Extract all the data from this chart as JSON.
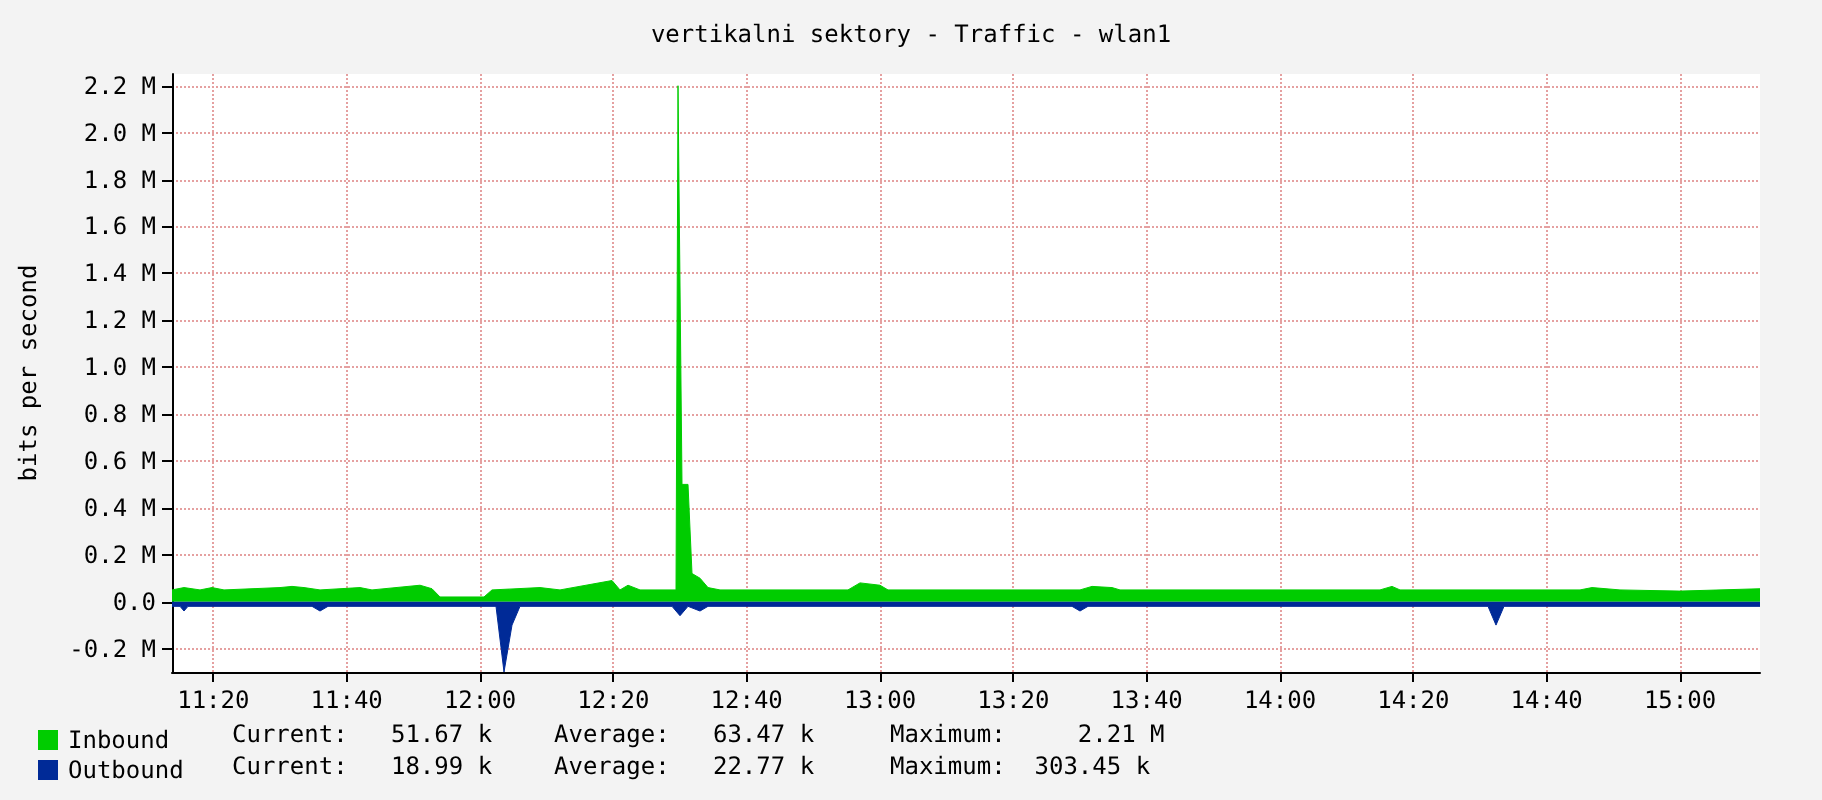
{
  "chart_data": {
    "type": "area",
    "title": "vertikalni sektory - Traffic - wlan1",
    "ylabel": "bits per second",
    "xlim": [
      11.23,
      15.2
    ],
    "xticks": [
      {
        "value": 11.3333,
        "label": "11:20"
      },
      {
        "value": 11.6667,
        "label": "11:40"
      },
      {
        "value": 12,
        "label": "12:00"
      },
      {
        "value": 12.3333,
        "label": "12:20"
      },
      {
        "value": 12.6667,
        "label": "12:40"
      },
      {
        "value": 13,
        "label": "13:00"
      },
      {
        "value": 13.3333,
        "label": "13:20"
      },
      {
        "value": 13.6667,
        "label": "13:40"
      },
      {
        "value": 14,
        "label": "14:00"
      },
      {
        "value": 14.3333,
        "label": "14:20"
      },
      {
        "value": 14.6667,
        "label": "14:40"
      },
      {
        "value": 15,
        "label": "15:00"
      }
    ],
    "ylim": [
      -0.3,
      2.25
    ],
    "yticks": [
      {
        "value": -0.2,
        "label": "-0.2 M"
      },
      {
        "value": 0,
        "label": "0.0"
      },
      {
        "value": 0.2,
        "label": "0.2 M"
      },
      {
        "value": 0.4,
        "label": "0.4 M"
      },
      {
        "value": 0.6,
        "label": "0.6 M"
      },
      {
        "value": 0.8,
        "label": "0.8 M"
      },
      {
        "value": 1.0,
        "label": "1.0 M"
      },
      {
        "value": 1.2,
        "label": "1.2 M"
      },
      {
        "value": 1.4,
        "label": "1.4 M"
      },
      {
        "value": 1.6,
        "label": "1.6 M"
      },
      {
        "value": 1.8,
        "label": "1.8 M"
      },
      {
        "value": 2.0,
        "label": "2.0 M"
      },
      {
        "value": 2.2,
        "label": "2.2 M"
      }
    ],
    "grid": true,
    "legend": "bottom left",
    "marker": "none",
    "series": [
      {
        "name": "Inbound",
        "color": "#00cc00",
        "x": [
          11.23,
          11.26,
          11.3,
          11.33,
          11.36,
          11.5,
          11.53,
          11.56,
          11.6,
          11.7,
          11.73,
          11.85,
          11.88,
          11.9,
          12.01,
          12.03,
          12.15,
          12.2,
          12.33,
          12.35,
          12.37,
          12.4,
          12.49,
          12.495,
          12.505,
          12.52,
          12.53,
          12.55,
          12.57,
          12.6,
          12.92,
          12.95,
          13.0,
          13.02,
          13.5,
          13.53,
          13.58,
          13.6,
          14.25,
          14.28,
          14.3,
          14.75,
          14.78,
          14.85,
          15.0,
          15.2
        ],
        "values": [
          0.05,
          0.06,
          0.05,
          0.06,
          0.05,
          0.06,
          0.065,
          0.06,
          0.05,
          0.06,
          0.05,
          0.07,
          0.055,
          0.02,
          0.02,
          0.05,
          0.06,
          0.05,
          0.09,
          0.05,
          0.07,
          0.05,
          0.05,
          2.2,
          0.5,
          0.5,
          0.12,
          0.1,
          0.06,
          0.05,
          0.05,
          0.08,
          0.07,
          0.05,
          0.05,
          0.065,
          0.06,
          0.05,
          0.05,
          0.065,
          0.05,
          0.05,
          0.06,
          0.05,
          0.045,
          0.055
        ]
      },
      {
        "name": "Outbound",
        "color": "#002a97",
        "x": [
          11.23,
          11.25,
          11.26,
          11.27,
          11.58,
          11.6,
          11.62,
          12.04,
          12.06,
          12.08,
          12.1,
          12.48,
          12.5,
          12.52,
          12.55,
          12.57,
          13.48,
          13.5,
          13.52,
          14.52,
          14.54,
          14.56,
          15.2
        ],
        "values": [
          -0.02,
          -0.02,
          -0.04,
          -0.02,
          -0.02,
          -0.04,
          -0.02,
          -0.02,
          -0.3,
          -0.1,
          -0.02,
          -0.02,
          -0.06,
          -0.02,
          -0.04,
          -0.02,
          -0.02,
          -0.04,
          -0.02,
          -0.02,
          -0.1,
          -0.02,
          -0.02
        ]
      }
    ],
    "annotations": [
      "Current:   51.67 k",
      "Average:   63.47 k",
      "Maximum:     2.21 M",
      "Current:   18.99 k",
      "Average:   22.77 k",
      "Maximum:  303.45 k"
    ]
  }
}
